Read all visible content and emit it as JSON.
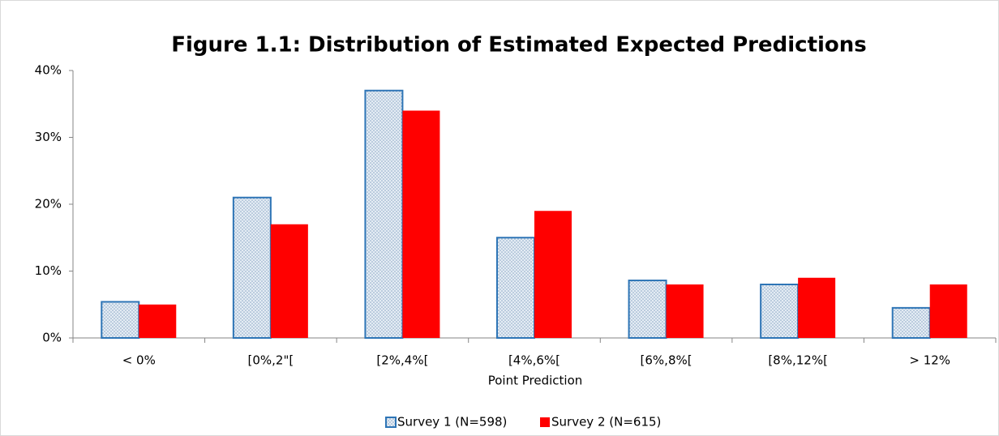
{
  "chart_data": {
    "type": "bar",
    "title": "Figure 1.1: Distribution of Estimated Expected Predictions",
    "x_label": "Point Prediction",
    "categories": [
      "< 0%",
      "[0%,2\"[",
      "[2%,4%[",
      "[4%,6%[",
      "[6%,8%[",
      "[8%,12%[",
      "> 12%"
    ],
    "series": [
      {
        "name": "Survey 1 (N=598)",
        "color": "#2e75b6",
        "pattern": "dots",
        "values": [
          5.4,
          21,
          37,
          15,
          8.6,
          8,
          4.5
        ]
      },
      {
        "name": "Survey 2 (N=615)",
        "color": "#ff0000",
        "values": [
          5,
          17,
          34,
          19,
          8,
          9,
          8
        ]
      }
    ],
    "ylim": [
      0,
      40
    ],
    "yticks": [
      {
        "value": 0,
        "label": "0%"
      },
      {
        "value": 10,
        "label": "10%"
      },
      {
        "value": 20,
        "label": "20%"
      },
      {
        "value": 30,
        "label": "30%"
      },
      {
        "value": 40,
        "label": "40%"
      }
    ],
    "grid": false,
    "legend": "bottom"
  }
}
